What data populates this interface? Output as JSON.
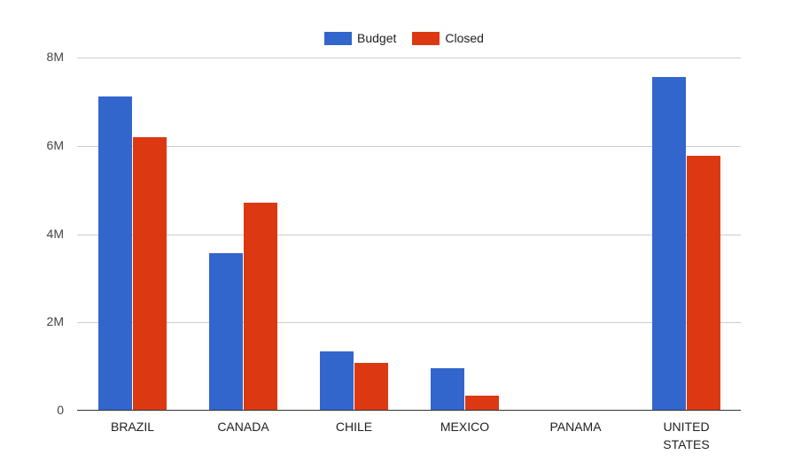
{
  "chart_data": {
    "type": "bar",
    "title": "",
    "xlabel": "",
    "ylabel": "",
    "categories": [
      "BRAZIL",
      "CANADA",
      "CHILE",
      "MEXICO",
      "PANAMA",
      "UNITED STATES"
    ],
    "series": [
      {
        "name": "Budget",
        "color": "#3366cc",
        "values": [
          7120000,
          3560000,
          1340000,
          960000,
          10000,
          7560000
        ]
      },
      {
        "name": "Closed",
        "color": "#dc3912",
        "values": [
          6200000,
          4720000,
          1080000,
          340000,
          10000,
          5780000
        ]
      }
    ],
    "yticks": [
      "0",
      "2M",
      "4M",
      "6M",
      "8M"
    ],
    "ylim": [
      0,
      8000000
    ],
    "grid": true,
    "legend_position": "top"
  },
  "legend": {
    "items": [
      {
        "label": "Budget",
        "color": "#3366cc"
      },
      {
        "label": "Closed",
        "color": "#dc3912"
      }
    ]
  }
}
